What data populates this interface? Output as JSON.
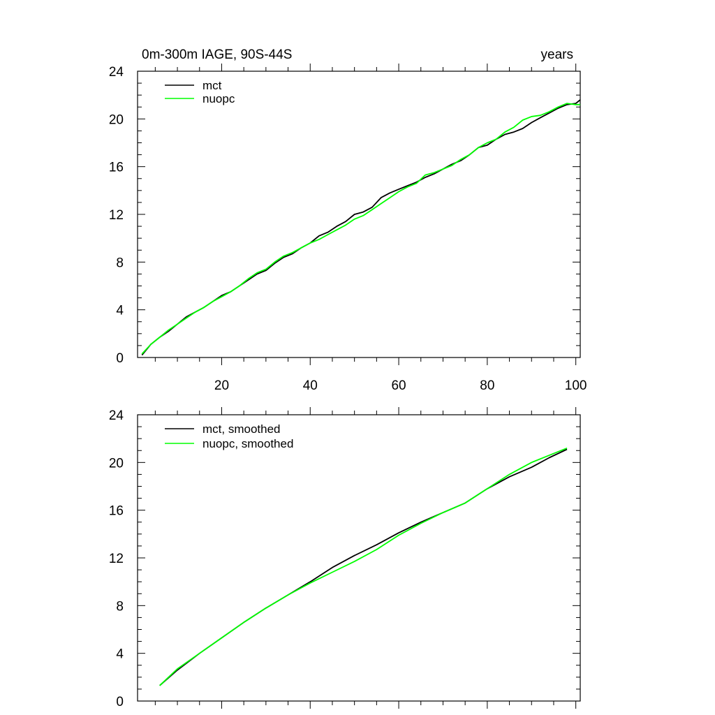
{
  "chart_data": [
    {
      "type": "line",
      "title_left": "0m-300m IAGE, 90S-44S",
      "title_right": "years",
      "xlim": [
        1,
        101
      ],
      "ylim": [
        0,
        24
      ],
      "x_ticks": [
        20,
        40,
        60,
        80,
        100
      ],
      "x_tick_labels": [
        "20",
        "40",
        "60",
        "80",
        "100"
      ],
      "y_ticks": [
        0,
        4,
        8,
        12,
        16,
        20,
        24
      ],
      "y_tick_labels": [
        "0",
        "4",
        "8",
        "12",
        "16",
        "20",
        "24"
      ],
      "legend_position": "top-left",
      "series": [
        {
          "name": "mct",
          "color": "#000000",
          "x": [
            2,
            4,
            6,
            8,
            10,
            12,
            14,
            16,
            18,
            20,
            22,
            24,
            26,
            28,
            30,
            32,
            34,
            36,
            38,
            40,
            42,
            44,
            46,
            48,
            50,
            52,
            54,
            56,
            58,
            60,
            62,
            64,
            66,
            68,
            70,
            72,
            74,
            76,
            78,
            80,
            82,
            84,
            86,
            88,
            90,
            92,
            94,
            96,
            98,
            100,
            101
          ],
          "y": [
            0.2,
            1.1,
            1.7,
            2.2,
            2.8,
            3.4,
            3.8,
            4.2,
            4.7,
            5.2,
            5.5,
            6.0,
            6.5,
            7.0,
            7.3,
            7.9,
            8.4,
            8.7,
            9.2,
            9.6,
            10.2,
            10.5,
            11.0,
            11.4,
            12.0,
            12.2,
            12.6,
            13.4,
            13.8,
            14.1,
            14.4,
            14.7,
            15.1,
            15.4,
            15.8,
            16.2,
            16.5,
            17.0,
            17.6,
            17.8,
            18.3,
            18.7,
            18.9,
            19.2,
            19.7,
            20.1,
            20.5,
            20.9,
            21.2,
            21.3,
            21.6
          ]
        },
        {
          "name": "nuopc",
          "color": "#00ff00",
          "x": [
            2,
            4,
            6,
            8,
            10,
            12,
            14,
            16,
            18,
            20,
            22,
            24,
            26,
            28,
            30,
            32,
            34,
            36,
            38,
            40,
            42,
            44,
            46,
            48,
            50,
            52,
            54,
            56,
            58,
            60,
            62,
            64,
            66,
            68,
            70,
            72,
            74,
            76,
            78,
            80,
            82,
            84,
            86,
            88,
            90,
            92,
            94,
            96,
            98,
            100,
            101
          ],
          "y": [
            0.3,
            1.1,
            1.7,
            2.3,
            2.8,
            3.3,
            3.8,
            4.2,
            4.7,
            5.1,
            5.5,
            6.0,
            6.6,
            7.1,
            7.4,
            8.0,
            8.5,
            8.8,
            9.2,
            9.6,
            9.9,
            10.3,
            10.7,
            11.1,
            11.6,
            11.9,
            12.4,
            12.9,
            13.4,
            13.9,
            14.3,
            14.6,
            15.3,
            15.5,
            15.8,
            16.1,
            16.6,
            17.0,
            17.6,
            18.0,
            18.3,
            18.9,
            19.3,
            19.9,
            20.2,
            20.3,
            20.6,
            21.0,
            21.3,
            21.2,
            21.2
          ]
        }
      ]
    },
    {
      "type": "line",
      "xlim": [
        1,
        101
      ],
      "ylim": [
        0,
        24
      ],
      "y_ticks": [
        0,
        4,
        8,
        12,
        16,
        20,
        24
      ],
      "y_tick_labels": [
        "0",
        "4",
        "8",
        "12",
        "16",
        "20",
        "24"
      ],
      "legend_position": "top-left",
      "series": [
        {
          "name": "mct, smoothed",
          "color": "#000000",
          "x": [
            6,
            10,
            15,
            20,
            25,
            30,
            35,
            40,
            45,
            50,
            55,
            60,
            65,
            70,
            75,
            80,
            85,
            90,
            94,
            98
          ],
          "y": [
            1.3,
            2.6,
            4.0,
            5.3,
            6.6,
            7.8,
            8.9,
            10.0,
            11.2,
            12.2,
            13.1,
            14.1,
            15.0,
            15.8,
            16.6,
            17.8,
            18.8,
            19.6,
            20.4,
            21.1
          ]
        },
        {
          "name": "nuopc, smoothed",
          "color": "#00ff00",
          "x": [
            6,
            10,
            15,
            20,
            25,
            30,
            35,
            40,
            45,
            50,
            55,
            60,
            65,
            70,
            75,
            80,
            85,
            90,
            94,
            98
          ],
          "y": [
            1.3,
            2.7,
            4.0,
            5.3,
            6.6,
            7.8,
            8.9,
            9.9,
            10.8,
            11.7,
            12.7,
            13.9,
            14.9,
            15.8,
            16.6,
            17.8,
            19.0,
            20.0,
            20.6,
            21.2
          ]
        }
      ]
    }
  ]
}
